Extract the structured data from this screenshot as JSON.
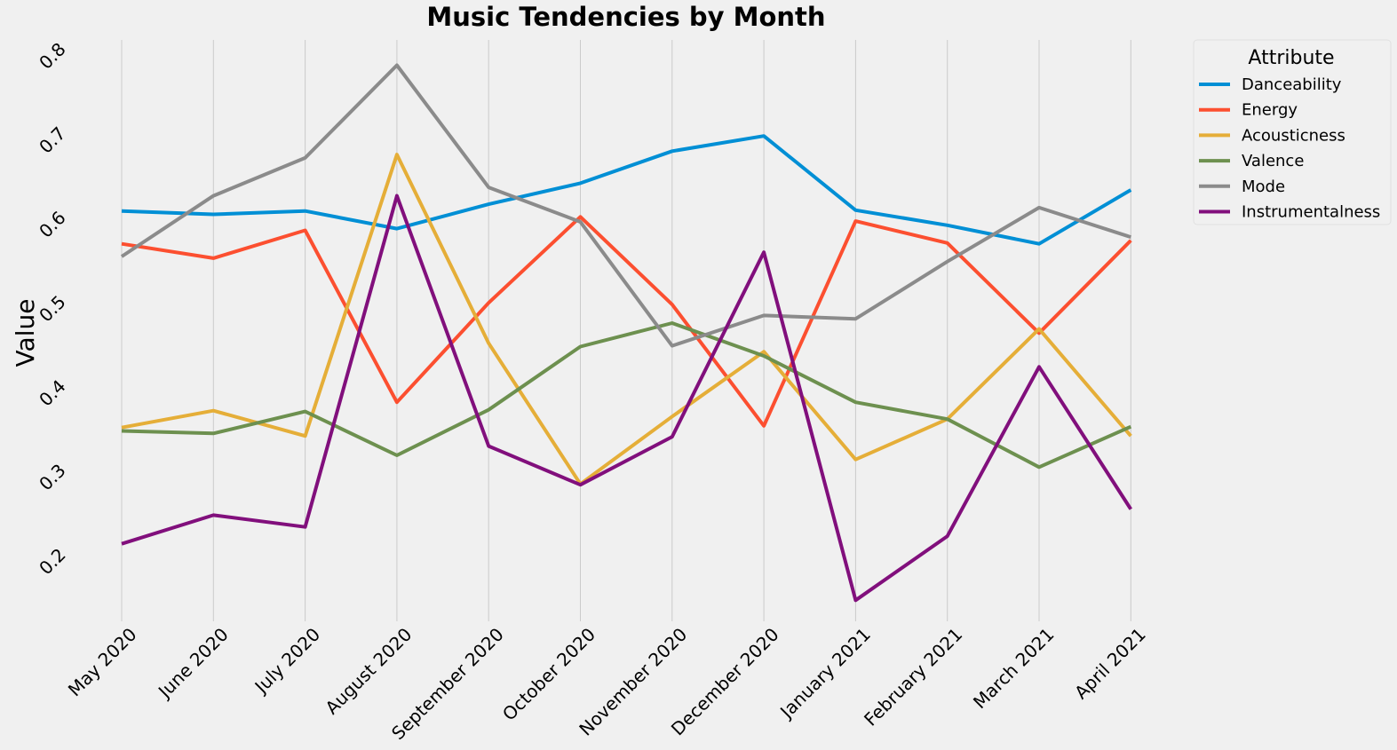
{
  "chart_data": {
    "type": "line",
    "title": "Music Tendencies by Month",
    "ylabel": "Value",
    "xlabel": "",
    "categories": [
      "May 2020",
      "June 2020",
      "July 2020",
      "August 2020",
      "September 2020",
      "October 2020",
      "November 2020",
      "December 2020",
      "January 2021",
      "February 2021",
      "March 2021",
      "April 2021"
    ],
    "ylim": [
      0.13,
      0.82
    ],
    "yticks": [
      "0.2",
      "0.3",
      "0.4",
      "0.5",
      "0.6",
      "0.7",
      "0.8"
    ],
    "grid": "vertical",
    "legend_title": "Attribute",
    "legend_position": "outside-top-right",
    "series": [
      {
        "name": "Danceability",
        "color": "#008fd5",
        "values": [
          0.617,
          0.613,
          0.617,
          0.596,
          0.625,
          0.65,
          0.688,
          0.706,
          0.618,
          0.6,
          0.578,
          0.642
        ]
      },
      {
        "name": "Energy",
        "color": "#fc4f30",
        "values": [
          0.578,
          0.561,
          0.594,
          0.39,
          0.508,
          0.61,
          0.506,
          0.362,
          0.605,
          0.579,
          0.472,
          0.582
        ]
      },
      {
        "name": "Acousticness",
        "color": "#e5ae38",
        "values": [
          0.36,
          0.38,
          0.35,
          0.684,
          0.46,
          0.293,
          0.373,
          0.45,
          0.322,
          0.37,
          0.477,
          0.35
        ]
      },
      {
        "name": "Valence",
        "color": "#6d904f",
        "values": [
          0.356,
          0.353,
          0.379,
          0.327,
          0.381,
          0.456,
          0.484,
          0.445,
          0.39,
          0.37,
          0.313,
          0.361
        ]
      },
      {
        "name": "Mode",
        "color": "#8b8b8b",
        "values": [
          0.563,
          0.635,
          0.68,
          0.79,
          0.645,
          0.604,
          0.457,
          0.493,
          0.489,
          0.557,
          0.621,
          0.586
        ]
      },
      {
        "name": "Instrumentalness",
        "color": "#810f7c",
        "values": [
          0.222,
          0.256,
          0.242,
          0.635,
          0.338,
          0.292,
          0.349,
          0.568,
          0.155,
          0.231,
          0.432,
          0.263
        ]
      }
    ]
  }
}
